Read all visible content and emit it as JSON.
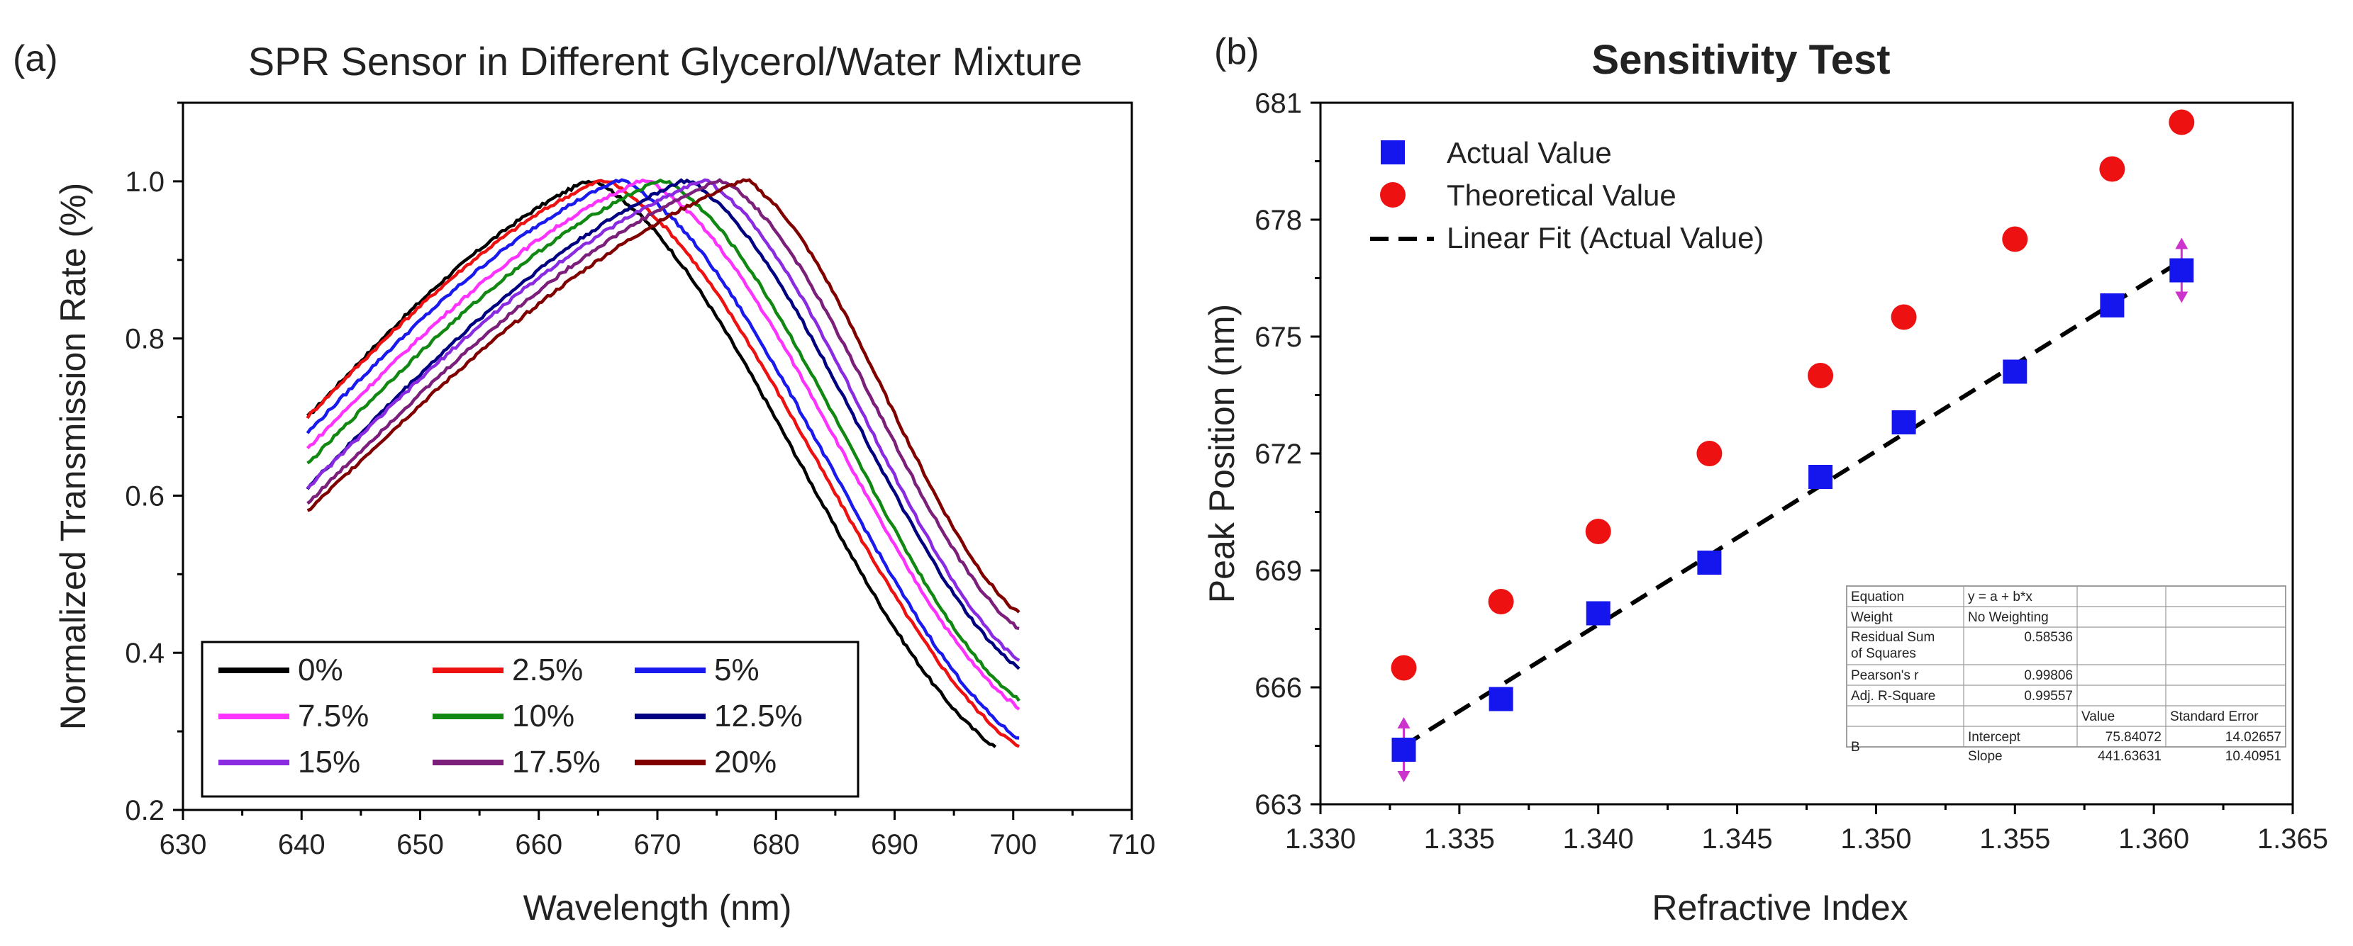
{
  "chart_data": [
    {
      "panel_label": "(a)",
      "type": "line",
      "title": "SPR Sensor in Different Glycerol/Water Mixture",
      "xlabel": "Wavelength (nm)",
      "ylabel": "Normalized Transmission Rate (%)",
      "xlim": [
        630,
        710
      ],
      "ylim": [
        0.2,
        1.1
      ],
      "xticks": [
        "630",
        "640",
        "650",
        "660",
        "670",
        "680",
        "690",
        "700",
        "710"
      ],
      "yticks": [
        "0.2",
        "0.4",
        "0.6",
        "0.8",
        "1.0"
      ],
      "legend_position": "lower-left",
      "series": [
        {
          "name": "0%",
          "color": "#000000",
          "start": [
            640.5,
            0.7
          ],
          "peak": [
            664.0,
            1.0
          ],
          "end": [
            698.5,
            0.28
          ]
        },
        {
          "name": "2.5%",
          "color": "#ee1111",
          "start": [
            640.5,
            0.7
          ],
          "peak": [
            665.0,
            1.0
          ],
          "end": [
            700.5,
            0.28
          ]
        },
        {
          "name": "5%",
          "color": "#1a1aee",
          "start": [
            640.5,
            0.68
          ],
          "peak": [
            666.5,
            1.0
          ],
          "end": [
            700.5,
            0.29
          ]
        },
        {
          "name": "7.5%",
          "color": "#ff33ff",
          "start": [
            640.5,
            0.66
          ],
          "peak": [
            668.5,
            1.0
          ],
          "end": [
            700.5,
            0.33
          ]
        },
        {
          "name": "10%",
          "color": "#118811",
          "start": [
            640.5,
            0.64
          ],
          "peak": [
            670.0,
            1.0
          ],
          "end": [
            700.5,
            0.34
          ]
        },
        {
          "name": "12.5%",
          "color": "#000080",
          "start": [
            640.5,
            0.61
          ],
          "peak": [
            672.0,
            1.0
          ],
          "end": [
            700.5,
            0.38
          ]
        },
        {
          "name": "15%",
          "color": "#8a2be2",
          "start": [
            640.5,
            0.61
          ],
          "peak": [
            673.5,
            1.0
          ],
          "end": [
            700.5,
            0.39
          ]
        },
        {
          "name": "17.5%",
          "color": "#7b1f7b",
          "start": [
            640.5,
            0.59
          ],
          "peak": [
            675.0,
            1.0
          ],
          "end": [
            700.5,
            0.43
          ]
        },
        {
          "name": "20%",
          "color": "#800000",
          "start": [
            640.5,
            0.58
          ],
          "peak": [
            677.0,
            1.0
          ],
          "end": [
            700.5,
            0.45
          ]
        }
      ]
    },
    {
      "panel_label": "(b)",
      "type": "scatter",
      "title": "Sensitivity Test",
      "xlabel": "Refractive Index",
      "ylabel": "Peak Position (nm)",
      "xlim": [
        1.33,
        1.365
      ],
      "ylim": [
        663,
        681
      ],
      "xticks": [
        "1.330",
        "1.335",
        "1.340",
        "1.345",
        "1.350",
        "1.355",
        "1.360",
        "1.365"
      ],
      "yticks": [
        "663",
        "666",
        "669",
        "672",
        "675",
        "678",
        "681"
      ],
      "legend_position": "top-left",
      "series": [
        {
          "name": "Actual Value",
          "marker": "square",
          "color": "#1515ee",
          "x": [
            1.333,
            1.3365,
            1.34,
            1.344,
            1.348,
            1.351,
            1.355,
            1.3585,
            1.361
          ],
          "y": [
            664.4,
            665.7,
            667.9,
            669.2,
            671.4,
            672.8,
            674.1,
            675.8,
            676.7
          ]
        },
        {
          "name": "Theoretical  Value",
          "marker": "circle",
          "color": "#ee1111",
          "x": [
            1.333,
            1.3365,
            1.34,
            1.344,
            1.348,
            1.351,
            1.355,
            1.3585,
            1.361
          ],
          "y": [
            666.5,
            668.2,
            670.0,
            672.0,
            674.0,
            675.5,
            677.5,
            679.3,
            680.5
          ]
        },
        {
          "name": "Linear Fit (Actual Value)",
          "marker": "dashed-line",
          "color": "#000000",
          "x": [
            1.333,
            1.361
          ],
          "y": [
            664.5,
            676.95
          ]
        }
      ],
      "error_bar_color": "#cc33cc",
      "stats_table": {
        "rows": [
          [
            "Equation",
            "y = a + b*x",
            "",
            ""
          ],
          [
            "Weight",
            "No Weighting",
            "",
            ""
          ],
          [
            "Residual Sum of Squares",
            "0.58536",
            "",
            ""
          ],
          [
            "Pearson's r",
            "0.99806",
            "",
            ""
          ],
          [
            "Adj. R-Square",
            "0.99557",
            "",
            ""
          ],
          [
            "",
            "",
            "Value",
            "Standard Error"
          ],
          [
            "B",
            "Intercept",
            "75.84072",
            "14.02657"
          ],
          [
            "",
            "Slope",
            "441.63631",
            "10.40951"
          ]
        ]
      }
    }
  ]
}
